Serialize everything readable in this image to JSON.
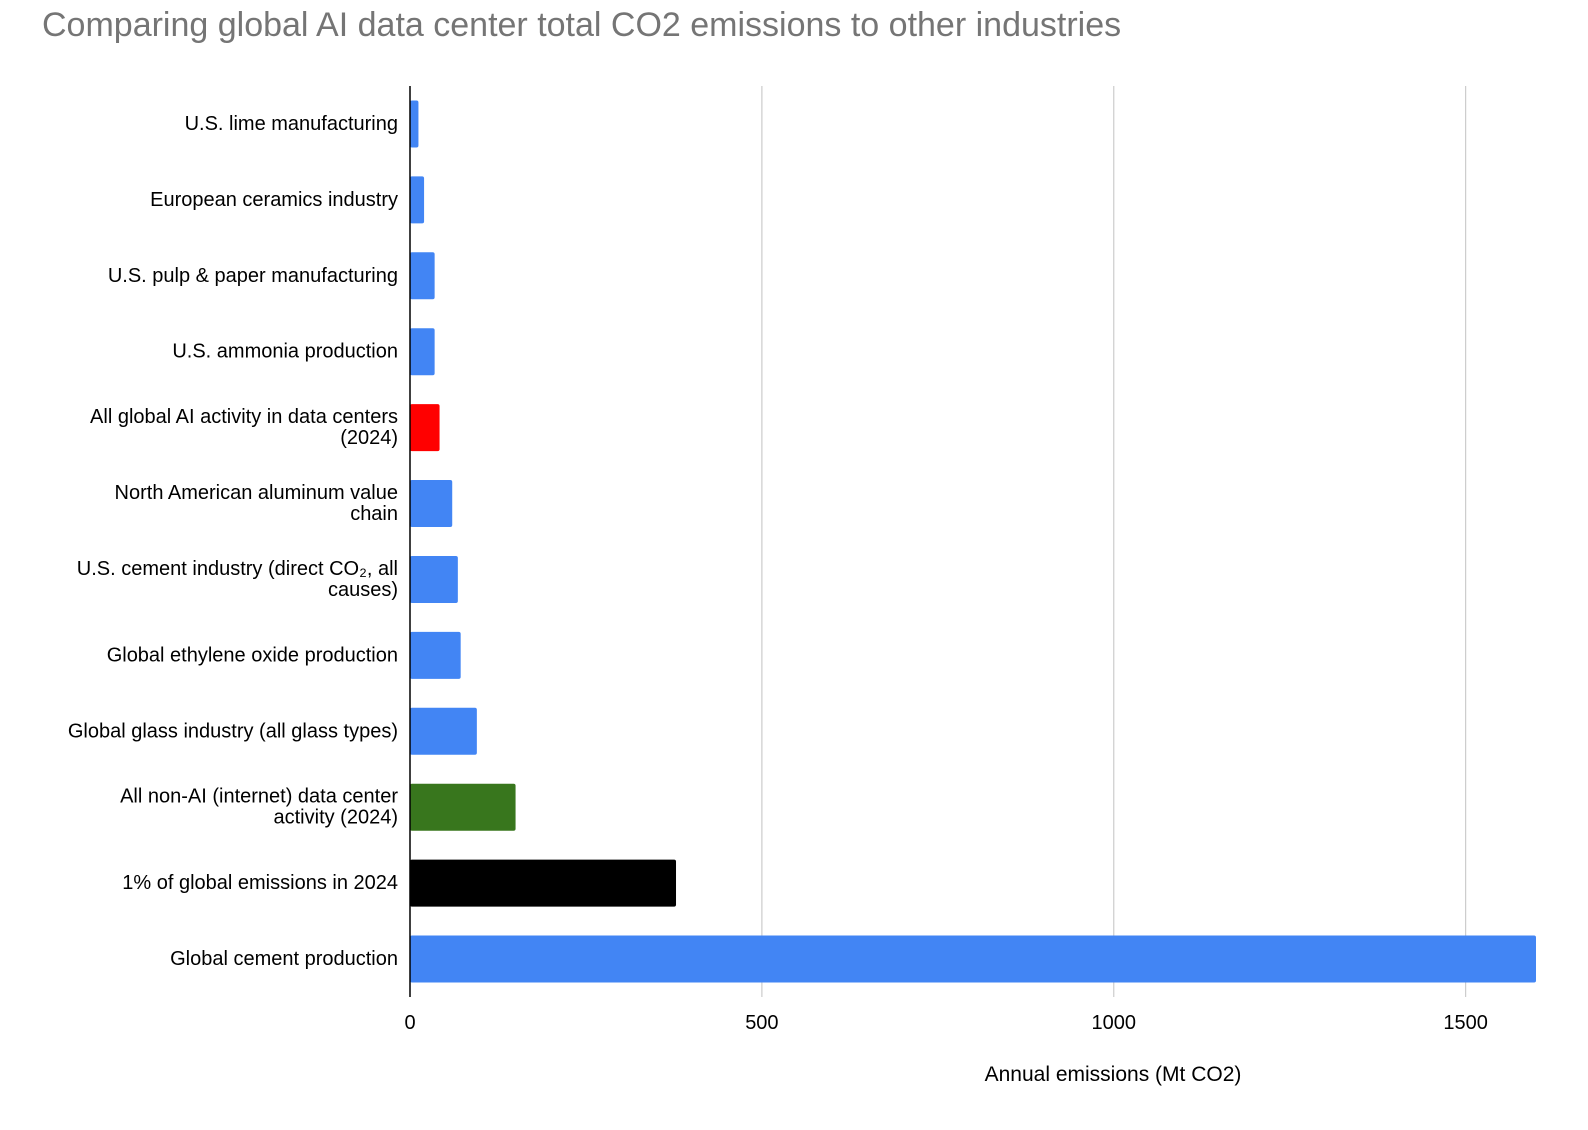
{
  "chart_data": {
    "type": "bar",
    "orientation": "horizontal",
    "title": "Comparing global AI data center total CO2 emissions to other industries",
    "xlabel": "Annual emissions (Mt CO2)",
    "ylabel": "",
    "xlim": [
      0,
      1600
    ],
    "xticks": [
      0,
      500,
      1000,
      1500
    ],
    "grid": "vertical",
    "legend": "none",
    "bars": [
      {
        "label": [
          "U.S. lime manufacturing"
        ],
        "value": 12,
        "color": "#4285F4"
      },
      {
        "label": [
          "European ceramics industry"
        ],
        "value": 20,
        "color": "#4285F4"
      },
      {
        "label": [
          "U.S. pulp & paper manufacturing"
        ],
        "value": 35,
        "color": "#4285F4"
      },
      {
        "label": [
          "U.S. ammonia production"
        ],
        "value": 35,
        "color": "#4285F4"
      },
      {
        "label": [
          "All global AI activity in data centers",
          "(2024)"
        ],
        "value": 42,
        "color": "#FF0000"
      },
      {
        "label": [
          "North American aluminum value",
          "chain"
        ],
        "value": 60,
        "color": "#4285F4"
      },
      {
        "label": [
          "U.S. cement industry (direct CO₂, all",
          "causes)"
        ],
        "value": 68,
        "color": "#4285F4"
      },
      {
        "label": [
          "Global ethylene oxide production"
        ],
        "value": 72,
        "color": "#4285F4"
      },
      {
        "label": [
          "Global glass industry (all glass types)"
        ],
        "value": 95,
        "color": "#4285F4"
      },
      {
        "label": [
          "All non-AI (internet) data center",
          "activity (2024)"
        ],
        "value": 150,
        "color": "#38761D"
      },
      {
        "label": [
          "1% of global emissions in 2024"
        ],
        "value": 378,
        "color": "#000000"
      },
      {
        "label": [
          "Global cement production"
        ],
        "value": 1600,
        "color": "#4285F4"
      }
    ]
  }
}
